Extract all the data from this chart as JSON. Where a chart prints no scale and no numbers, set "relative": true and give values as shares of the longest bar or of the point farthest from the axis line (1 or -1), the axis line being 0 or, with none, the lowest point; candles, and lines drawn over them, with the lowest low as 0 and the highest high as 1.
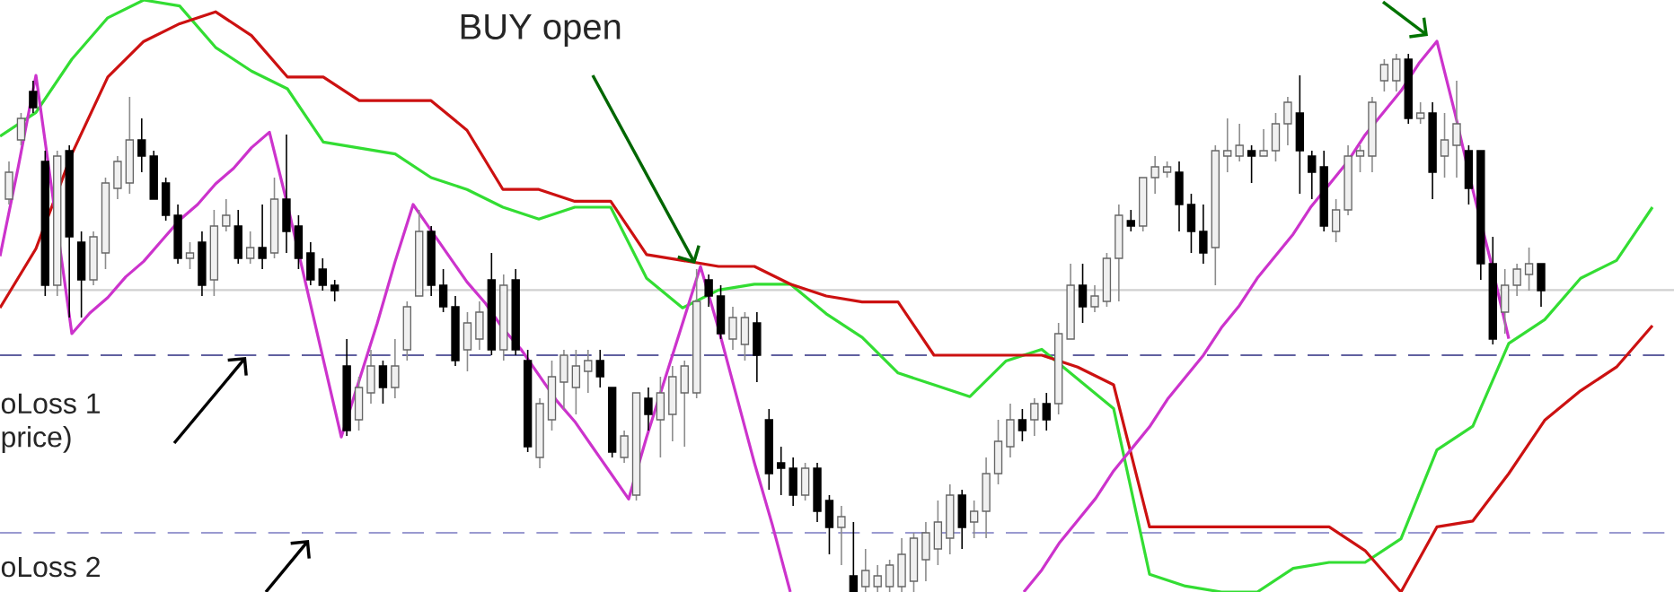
{
  "chart_data": [
    {
      "type": "candlestick",
      "relative": true,
      "categories": [
        null,
        null,
        null,
        null,
        null,
        null,
        null,
        null,
        null,
        null,
        null,
        null,
        null,
        null,
        null,
        null,
        null,
        null,
        null,
        null,
        null,
        null,
        null,
        null,
        null,
        null,
        null,
        null,
        null,
        null,
        null,
        null,
        null,
        null,
        null,
        null,
        null,
        null,
        null,
        null,
        null,
        null,
        null,
        null,
        null,
        null,
        null,
        null,
        null,
        null,
        null,
        null,
        null,
        null,
        null,
        null,
        null,
        null,
        null,
        null,
        null,
        null,
        null,
        null,
        null,
        null,
        null,
        null,
        null,
        null,
        null,
        null,
        null,
        null,
        null,
        null,
        null,
        null,
        null,
        null,
        null,
        null,
        null,
        null,
        null,
        null,
        null,
        null,
        null,
        null,
        null,
        null,
        null,
        null,
        null,
        null,
        null,
        null,
        null,
        null,
        null,
        null,
        null,
        null,
        null,
        null,
        null,
        null,
        null,
        null,
        null,
        null,
        null,
        null,
        null,
        null,
        null,
        null,
        null,
        null,
        null,
        null,
        null,
        null,
        null,
        null,
        null,
        null
      ],
      "ohlc": [
        [
          0.73,
          0.8,
          0.72,
          0.78
        ],
        [
          0.84,
          0.89,
          0.83,
          0.88
        ],
        [
          0.93,
          0.95,
          0.89,
          0.9
        ],
        [
          0.8,
          0.82,
          0.55,
          0.57
        ],
        [
          0.57,
          0.82,
          0.55,
          0.81
        ],
        [
          0.82,
          0.83,
          0.51,
          0.66
        ],
        [
          0.65,
          0.67,
          0.51,
          0.58
        ],
        [
          0.58,
          0.67,
          0.57,
          0.66
        ],
        [
          0.63,
          0.77,
          0.6,
          0.76
        ],
        [
          0.75,
          0.81,
          0.73,
          0.8
        ],
        [
          0.76,
          0.92,
          0.74,
          0.84
        ],
        [
          0.84,
          0.88,
          0.78,
          0.81
        ],
        [
          0.81,
          0.82,
          0.73,
          0.73
        ],
        [
          0.76,
          0.77,
          0.69,
          0.7
        ],
        [
          0.7,
          0.72,
          0.61,
          0.62
        ],
        [
          0.62,
          0.65,
          0.6,
          0.63
        ],
        [
          0.65,
          0.67,
          0.55,
          0.57
        ],
        [
          0.58,
          0.71,
          0.55,
          0.68
        ],
        [
          0.68,
          0.73,
          0.67,
          0.7
        ],
        [
          0.68,
          0.71,
          0.61,
          0.62
        ],
        [
          0.62,
          0.67,
          0.61,
          0.64
        ],
        [
          0.64,
          0.72,
          0.6,
          0.62
        ],
        [
          0.63,
          0.77,
          0.62,
          0.73
        ],
        [
          0.73,
          0.85,
          0.63,
          0.67
        ],
        [
          0.68,
          0.7,
          0.6,
          0.62
        ],
        [
          0.63,
          0.65,
          0.57,
          0.58
        ],
        [
          0.6,
          0.62,
          0.56,
          0.57
        ],
        [
          0.57,
          0.58,
          0.54,
          0.56
        ],
        [
          0.42,
          0.47,
          0.29,
          0.3
        ],
        [
          0.32,
          0.4,
          0.3,
          0.38
        ],
        [
          0.37,
          0.45,
          0.35,
          0.42
        ],
        [
          0.42,
          0.43,
          0.35,
          0.38
        ],
        [
          0.38,
          0.47,
          0.36,
          0.42
        ],
        [
          0.45,
          0.54,
          0.43,
          0.53
        ],
        [
          0.55,
          0.71,
          0.55,
          0.67
        ],
        [
          0.67,
          0.68,
          0.55,
          0.57
        ],
        [
          0.57,
          0.6,
          0.52,
          0.53
        ],
        [
          0.53,
          0.55,
          0.42,
          0.43
        ],
        [
          0.45,
          0.52,
          0.41,
          0.5
        ],
        [
          0.47,
          0.54,
          0.45,
          0.52
        ],
        [
          0.58,
          0.63,
          0.44,
          0.45
        ],
        [
          0.45,
          0.59,
          0.43,
          0.57
        ],
        [
          0.58,
          0.6,
          0.44,
          0.45
        ],
        [
          0.43,
          0.45,
          0.26,
          0.27
        ],
        [
          0.25,
          0.36,
          0.23,
          0.35
        ],
        [
          0.32,
          0.43,
          0.3,
          0.4
        ],
        [
          0.39,
          0.45,
          0.34,
          0.44
        ],
        [
          0.38,
          0.45,
          0.33,
          0.42
        ],
        [
          0.41,
          0.45,
          0.37,
          0.43
        ],
        [
          0.43,
          0.45,
          0.38,
          0.4
        ],
        [
          0.38,
          0.38,
          0.25,
          0.26
        ],
        [
          0.25,
          0.3,
          0.24,
          0.29
        ],
        [
          0.18,
          0.37,
          0.17,
          0.37
        ],
        [
          0.36,
          0.38,
          0.3,
          0.33
        ],
        [
          0.32,
          0.4,
          0.25,
          0.37
        ],
        [
          0.33,
          0.42,
          0.28,
          0.4
        ],
        [
          0.37,
          0.43,
          0.27,
          0.42
        ],
        [
          0.37,
          0.6,
          0.36,
          0.54
        ],
        [
          0.58,
          0.59,
          0.53,
          0.55
        ],
        [
          0.55,
          0.57,
          0.47,
          0.48
        ],
        [
          0.47,
          0.53,
          0.45,
          0.51
        ],
        [
          0.46,
          0.52,
          0.43,
          0.51
        ],
        [
          0.5,
          0.52,
          0.39,
          0.44
        ],
        [
          0.32,
          0.34,
          0.19,
          0.22
        ],
        [
          0.24,
          0.27,
          0.18,
          0.23
        ],
        [
          0.23,
          0.25,
          0.16,
          0.18
        ],
        [
          0.18,
          0.24,
          0.17,
          0.23
        ],
        [
          0.23,
          0.24,
          0.13,
          0.15
        ],
        [
          0.17,
          0.18,
          0.07,
          0.12
        ],
        [
          0.12,
          0.16,
          0.05,
          0.14
        ],
        [
          0.03,
          0.13,
          0.0,
          0.0
        ],
        [
          0.01,
          0.08,
          0.0,
          0.04
        ],
        [
          0.01,
          0.05,
          0.0,
          0.03
        ],
        [
          0.01,
          0.06,
          0.0,
          0.05
        ],
        [
          0.01,
          0.1,
          0.0,
          0.07
        ],
        [
          0.02,
          0.11,
          0.0,
          0.1
        ],
        [
          0.06,
          0.13,
          0.02,
          0.11
        ],
        [
          0.08,
          0.17,
          0.05,
          0.13
        ],
        [
          0.1,
          0.2,
          0.07,
          0.18
        ],
        [
          0.18,
          0.19,
          0.08,
          0.12
        ],
        [
          0.13,
          0.17,
          0.1,
          0.15
        ],
        [
          0.15,
          0.25,
          0.1,
          0.22
        ],
        [
          0.22,
          0.32,
          0.2,
          0.28
        ],
        [
          0.27,
          0.35,
          0.25,
          0.32
        ],
        [
          0.32,
          0.34,
          0.28,
          0.3
        ],
        [
          0.32,
          0.36,
          0.29,
          0.35
        ],
        [
          0.35,
          0.37,
          0.3,
          0.32
        ],
        [
          0.35,
          0.5,
          0.33,
          0.48
        ],
        [
          0.47,
          0.61,
          0.47,
          0.57
        ],
        [
          0.57,
          0.61,
          0.5,
          0.53
        ],
        [
          0.53,
          0.57,
          0.52,
          0.55
        ],
        [
          0.54,
          0.63,
          0.53,
          0.62
        ],
        [
          0.62,
          0.72,
          0.54,
          0.7
        ],
        [
          0.69,
          0.71,
          0.67,
          0.68
        ],
        [
          0.68,
          0.77,
          0.67,
          0.77
        ],
        [
          0.77,
          0.81,
          0.74,
          0.79
        ],
        [
          0.78,
          0.8,
          0.77,
          0.79
        ],
        [
          0.78,
          0.8,
          0.67,
          0.72
        ],
        [
          0.72,
          0.74,
          0.63,
          0.67
        ],
        [
          0.67,
          0.72,
          0.61,
          0.63
        ],
        [
          0.64,
          0.83,
          0.57,
          0.82
        ],
        [
          0.81,
          0.88,
          0.78,
          0.82
        ],
        [
          0.81,
          0.87,
          0.8,
          0.83
        ],
        [
          0.82,
          0.83,
          0.76,
          0.81
        ],
        [
          0.81,
          0.86,
          0.81,
          0.82
        ],
        [
          0.82,
          0.89,
          0.8,
          0.87
        ],
        [
          0.87,
          0.92,
          0.83,
          0.91
        ],
        [
          0.89,
          0.96,
          0.74,
          0.82
        ],
        [
          0.81,
          0.82,
          0.73,
          0.78
        ],
        [
          0.79,
          0.82,
          0.67,
          0.68
        ],
        [
          0.67,
          0.73,
          0.65,
          0.71
        ],
        [
          0.71,
          0.83,
          0.7,
          0.81
        ],
        [
          0.81,
          0.83,
          0.78,
          0.82
        ],
        [
          0.81,
          0.92,
          0.78,
          0.91
        ],
        [
          0.95,
          0.99,
          0.93,
          0.98
        ],
        [
          0.95,
          1.0,
          0.93,
          0.99
        ],
        [
          0.99,
          1.0,
          0.87,
          0.88
        ],
        [
          0.88,
          0.91,
          0.87,
          0.89
        ],
        [
          0.89,
          0.91,
          0.73,
          0.78
        ],
        [
          0.81,
          0.89,
          0.77,
          0.84
        ],
        [
          0.83,
          0.95,
          0.77,
          0.87
        ],
        [
          0.82,
          0.83,
          0.72,
          0.75
        ],
        [
          0.82,
          0.82,
          0.58,
          0.61
        ],
        [
          0.61,
          0.66,
          0.46,
          0.47
        ],
        [
          0.52,
          0.6,
          0.48,
          0.57
        ],
        [
          0.57,
          0.61,
          0.55,
          0.6
        ],
        [
          0.59,
          0.64,
          0.56,
          0.61
        ],
        [
          0.61,
          0.61,
          0.53,
          0.56
        ]
      ]
    },
    {
      "type": "line",
      "relative": true,
      "marker": "none",
      "line_style": "solid",
      "categories": [
        null,
        null,
        null,
        null,
        null,
        null,
        null,
        null,
        null,
        null,
        null,
        null,
        null,
        null,
        null,
        null,
        null,
        null,
        null,
        null,
        null,
        null,
        null,
        null,
        null,
        null,
        null,
        null,
        null,
        null,
        null,
        null,
        null,
        null,
        null,
        null,
        null,
        null,
        null,
        null,
        null,
        null,
        null,
        null,
        null,
        null,
        null
      ],
      "series": [
        {
          "color": "#33dd33",
          "values": [
            0.77,
            0.81,
            0.9,
            0.97,
            1.0,
            0.99,
            0.92,
            0.88,
            0.85,
            0.76,
            0.75,
            0.74,
            0.7,
            0.68,
            0.65,
            0.63,
            0.65,
            0.65,
            0.53,
            0.48,
            0.51,
            0.52,
            0.52,
            0.47,
            0.43,
            0.37,
            0.35,
            0.33,
            0.39,
            0.41,
            0.36,
            0.31,
            0.03,
            0.01,
            0.0,
            0.0,
            0.04,
            0.05,
            0.05,
            0.09,
            0.24,
            0.28,
            0.42,
            0.46,
            0.53,
            0.56,
            0.65
          ]
        },
        {
          "color": "#cc1111",
          "values": [
            0.48,
            0.58,
            0.74,
            0.87,
            0.93,
            0.96,
            0.98,
            0.94,
            0.87,
            0.87,
            0.83,
            0.83,
            0.83,
            0.78,
            0.68,
            0.68,
            0.66,
            0.66,
            0.57,
            0.56,
            0.55,
            0.55,
            0.52,
            0.5,
            0.49,
            0.49,
            0.4,
            0.4,
            0.4,
            0.4,
            0.38,
            0.35,
            0.11,
            0.11,
            0.11,
            0.11,
            0.11,
            0.11,
            0.07,
            0.0,
            0.11,
            0.12,
            0.2,
            0.29,
            0.34,
            0.38,
            0.45
          ]
        }
      ],
      "ref_lines": [
        {
          "axis": "y",
          "value": 0.51,
          "color": "#d0d0d0",
          "line_style": "solid"
        },
        {
          "axis": "y",
          "value": 0.4,
          "color": "#6060a0",
          "line_style": "dashed"
        },
        {
          "axis": "y",
          "value": 0.1,
          "color": "#9a9ad0",
          "line_style": "dashed"
        }
      ],
      "annotations": [
        "BUY open",
        "oLoss 1",
        "price)",
        "oLoss 2"
      ]
    },
    {
      "type": "line",
      "relative": true,
      "marker": "none",
      "line_style": "solid",
      "categories": [
        null,
        null,
        null,
        null,
        null,
        null,
        null,
        null,
        null,
        null,
        null,
        null,
        null,
        null,
        null,
        null,
        null,
        null,
        null,
        null,
        null,
        null,
        null,
        null,
        null,
        null,
        null,
        null,
        null,
        null,
        null,
        null,
        null,
        null,
        null,
        null,
        null,
        null,
        null,
        null,
        null,
        null,
        null,
        null,
        null
      ],
      "series": [
        {
          "color": "#cc33cc",
          "values": [
            0.65,
            0.82,
            1.0,
            0.75,
            0.5,
            0.54,
            0.57,
            0.61,
            0.64,
            0.68,
            0.72,
            0.75,
            0.79,
            0.82,
            0.86,
            0.89,
            0.75,
            0.6,
            0.45,
            0.3,
            0.41,
            0.52,
            0.64,
            0.75,
            0.7,
            0.65,
            0.6,
            0.56,
            0.51,
            0.47,
            0.42,
            0.37,
            0.33,
            0.28,
            0.23,
            0.18,
            0.3,
            0.41,
            0.52,
            0.63,
            0.51,
            0.38,
            0.25,
            0.13,
            0.0
          ]
        }
      ]
    },
    {
      "type": "line",
      "relative": true,
      "marker": "none",
      "line_style": "solid",
      "categories": [
        null,
        null,
        null,
        null,
        null,
        null,
        null,
        null,
        null,
        null,
        null,
        null,
        null,
        null,
        null,
        null,
        null,
        null,
        null,
        null,
        null,
        null,
        null,
        null,
        null,
        null,
        null,
        null
      ],
      "series": [
        {
          "color": "#cc33cc",
          "values": [
            0.0,
            0.04,
            0.09,
            0.13,
            0.17,
            0.22,
            0.26,
            0.3,
            0.35,
            0.39,
            0.43,
            0.48,
            0.52,
            0.57,
            0.61,
            0.65,
            0.7,
            0.74,
            0.78,
            0.83,
            0.87,
            0.91,
            0.96,
            1.0,
            0.87,
            0.73,
            0.6,
            0.46
          ]
        }
      ]
    }
  ]
}
